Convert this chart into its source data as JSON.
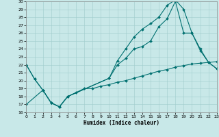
{
  "xlabel": "Humidex (Indice chaleur)",
  "xlim": [
    0,
    23
  ],
  "ylim": [
    16,
    30
  ],
  "background_color": "#c8e8e8",
  "line_color": "#007070",
  "grid_color": "#a0cccc",
  "line1_x": [
    0,
    1,
    2,
    3,
    4,
    5,
    10,
    11,
    12,
    13,
    14,
    15,
    16,
    17,
    18,
    19,
    20,
    21,
    22,
    23
  ],
  "line1_y": [
    22,
    20.2,
    18.8,
    17.2,
    16.7,
    18.0,
    20.3,
    22.0,
    22.8,
    24.0,
    24.3,
    25.0,
    26.8,
    27.8,
    30.0,
    26.0,
    26.0,
    23.8,
    22.3,
    21.5
  ],
  "line2_x": [
    0,
    1,
    2,
    3,
    4,
    5,
    10,
    11,
    12,
    13,
    14,
    15,
    16,
    17,
    18,
    19,
    20,
    21,
    22,
    23
  ],
  "line2_y": [
    22,
    20.2,
    18.8,
    17.2,
    16.7,
    18.0,
    20.3,
    22.5,
    24.0,
    25.5,
    26.5,
    27.2,
    28.0,
    29.5,
    30.2,
    29.0,
    26.0,
    24.0,
    22.3,
    21.5
  ],
  "line3_x": [
    0,
    2,
    3,
    4,
    5,
    6,
    7,
    8,
    9,
    10,
    11,
    12,
    13,
    14,
    15,
    16,
    17,
    18,
    19,
    20,
    21,
    22,
    23
  ],
  "line3_y": [
    17,
    18.8,
    17.2,
    16.7,
    18.0,
    18.5,
    19.0,
    19.0,
    19.3,
    19.5,
    19.8,
    20.0,
    20.3,
    20.6,
    20.9,
    21.2,
    21.4,
    21.7,
    21.9,
    22.1,
    22.2,
    22.3,
    22.4
  ],
  "xticks": [
    0,
    1,
    2,
    3,
    4,
    5,
    6,
    7,
    8,
    9,
    10,
    11,
    12,
    13,
    14,
    15,
    16,
    17,
    18,
    19,
    20,
    21,
    22,
    23
  ],
  "yticks": [
    16,
    17,
    18,
    19,
    20,
    21,
    22,
    23,
    24,
    25,
    26,
    27,
    28,
    29,
    30
  ]
}
